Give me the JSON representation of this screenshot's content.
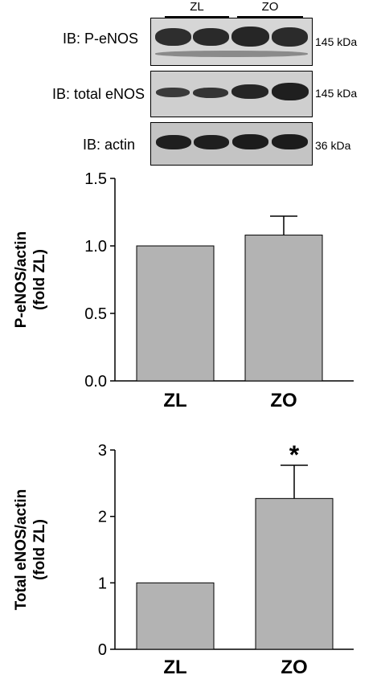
{
  "blot": {
    "groups": [
      "ZL",
      "ZO"
    ],
    "rows": [
      {
        "label": "IB: P-eNOS",
        "size": "145 kDa"
      },
      {
        "label": "IB: total eNOS",
        "size": "145 kDa"
      },
      {
        "label": "IB: actin",
        "size": "36 kDa"
      }
    ]
  },
  "chart_data": [
    {
      "type": "bar",
      "categories": [
        "ZL",
        "ZO"
      ],
      "values": [
        1.0,
        1.08
      ],
      "error_upper": [
        0,
        0.14
      ],
      "ylabel_line1": "P-eNOS/actin",
      "ylabel_line2": "(fold ZL)",
      "ylim": [
        0,
        1.5
      ],
      "yticks": [
        "0.0",
        "0.5",
        "1.0",
        "1.5"
      ],
      "annotations": [
        "",
        ""
      ],
      "bar_color": "#b3b3b3"
    },
    {
      "type": "bar",
      "categories": [
        "ZL",
        "ZO"
      ],
      "values": [
        1.0,
        2.27
      ],
      "error_upper": [
        0,
        0.5
      ],
      "ylabel_line1": "Total eNOS/actin",
      "ylabel_line2": "(fold ZL)",
      "ylim": [
        0,
        3
      ],
      "yticks": [
        "0",
        "1",
        "2",
        "3"
      ],
      "annotations": [
        "",
        "*"
      ],
      "bar_color": "#b3b3b3"
    }
  ]
}
